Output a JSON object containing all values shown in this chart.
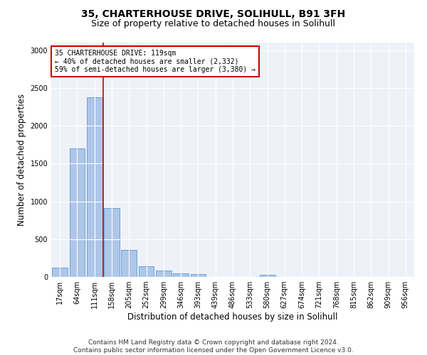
{
  "title1": "35, CHARTERHOUSE DRIVE, SOLIHULL, B91 3FH",
  "title2": "Size of property relative to detached houses in Solihull",
  "xlabel": "Distribution of detached houses by size in Solihull",
  "ylabel": "Number of detached properties",
  "bar_labels": [
    "17sqm",
    "64sqm",
    "111sqm",
    "158sqm",
    "205sqm",
    "252sqm",
    "299sqm",
    "346sqm",
    "393sqm",
    "439sqm",
    "486sqm",
    "533sqm",
    "580sqm",
    "627sqm",
    "674sqm",
    "721sqm",
    "768sqm",
    "815sqm",
    "862sqm",
    "909sqm",
    "956sqm"
  ],
  "bar_values": [
    120,
    1700,
    2380,
    910,
    355,
    140,
    80,
    50,
    40,
    0,
    0,
    0,
    30,
    0,
    0,
    0,
    0,
    0,
    0,
    0,
    0
  ],
  "bar_color": "#aec6e8",
  "bar_edge_color": "#5b9bd5",
  "vline_x_idx": 2,
  "vline_color": "#cc0000",
  "annotation_text": "35 CHARTERHOUSE DRIVE: 119sqm\n← 40% of detached houses are smaller (2,332)\n59% of semi-detached houses are larger (3,380) →",
  "annotation_box_color": "#cc0000",
  "ylim": [
    0,
    3100
  ],
  "yticks": [
    0,
    500,
    1000,
    1500,
    2000,
    2500,
    3000
  ],
  "footnote1": "Contains HM Land Registry data © Crown copyright and database right 2024.",
  "footnote2": "Contains public sector information licensed under the Open Government Licence v3.0.",
  "bg_color": "#eef2f8",
  "title1_fontsize": 10,
  "title2_fontsize": 9,
  "xlabel_fontsize": 8.5,
  "ylabel_fontsize": 8.5,
  "tick_fontsize": 7,
  "footnote_fontsize": 6.5
}
